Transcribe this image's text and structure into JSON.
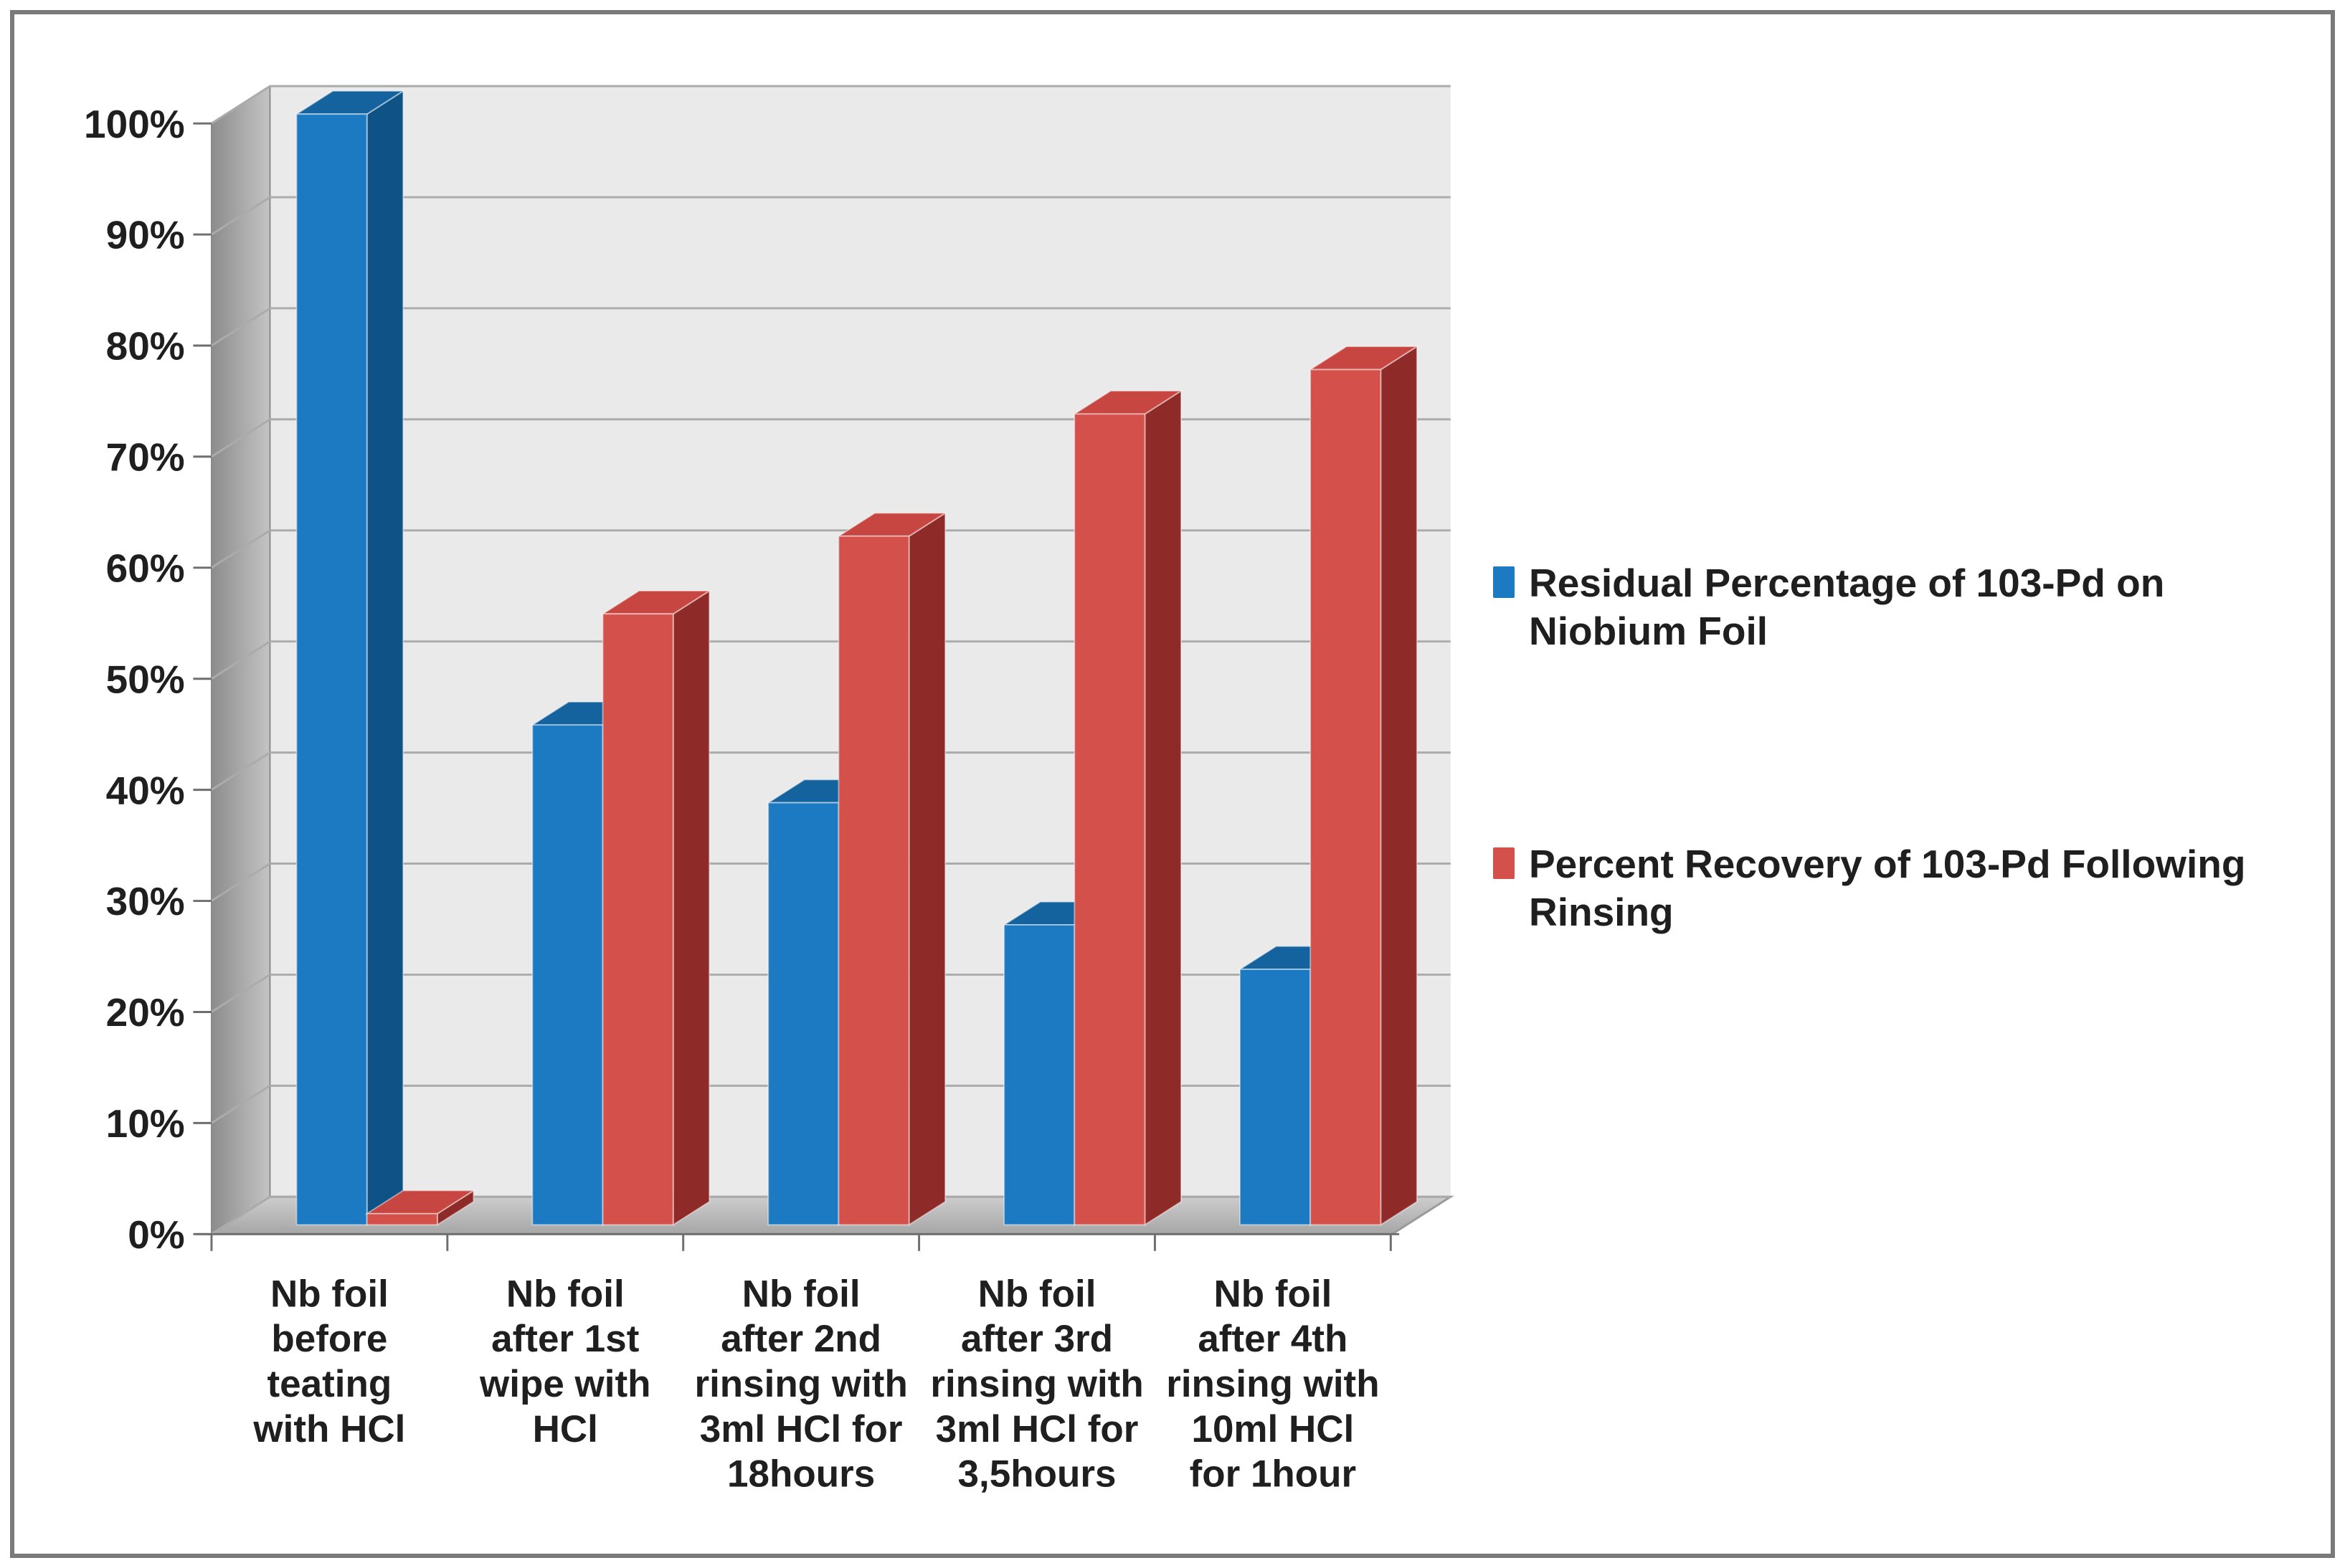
{
  "window": {
    "background": "#FFFFFF",
    "frame_border_color": "#7A7A7A"
  },
  "chart_data": {
    "type": "bar",
    "variant": "3d-clustered-column",
    "title": "",
    "xlabel": "",
    "ylabel": "",
    "categories": [
      {
        "label": "Nb foil before teating with HCl",
        "lines": [
          "Nb foil",
          "before",
          "teating",
          "with HCl"
        ]
      },
      {
        "label": "Nb foil after 1st wipe with HCl",
        "lines": [
          "Nb foil",
          "after 1st",
          "wipe with",
          "HCl"
        ]
      },
      {
        "label": "Nb foil after 2nd rinsing with 3ml HCl for 18hours",
        "lines": [
          "Nb foil",
          "after 2nd",
          "rinsing with",
          "3ml HCl for",
          "18hours"
        ]
      },
      {
        "label": "Nb foil after 3rd rinsing with 3ml HCl for 3,5hours",
        "lines": [
          "Nb foil",
          "after 3rd",
          "rinsing with",
          "3ml HCl for",
          "3,5hours"
        ]
      },
      {
        "label": "Nb foil after 4th rinsing with 10ml HCl for 1hour",
        "lines": [
          "Nb foil",
          "after 4th",
          "rinsing with",
          "10ml HCl",
          "for 1hour"
        ]
      }
    ],
    "series": [
      {
        "name": "Residual Percentage of 103-Pd on Niobium Foil",
        "name_lines": [
          "Residual Percentage of 103-Pd on",
          "Niobium Foil"
        ],
        "values": [
          100,
          45,
          38,
          27,
          23
        ],
        "color": "#1B7AC2",
        "color_top": "#15639E",
        "color_side": "#0E5286"
      },
      {
        "name": "Percent Recovery of 103-Pd Following Rinsing",
        "name_lines": [
          "Percent Recovery of 103-Pd Following",
          "Rinsing"
        ],
        "values": [
          1,
          55,
          62,
          73,
          77
        ],
        "color": "#D4504B",
        "color_top": "#C74642",
        "color_side": "#8E2B28"
      }
    ],
    "ylim": [
      0,
      100
    ],
    "ytick_step": 10,
    "ytick_labels": [
      "0%",
      "10%",
      "20%",
      "30%",
      "40%",
      "50%",
      "60%",
      "70%",
      "80%",
      "90%",
      "100%"
    ],
    "ytick_format": "percent",
    "grid": true,
    "legend_position": "right",
    "gridline_color": "#ABABAB",
    "wall_color": "#EAEAEA",
    "axis_color": "#6E6E6E",
    "text_color": "#1F1F1F"
  }
}
